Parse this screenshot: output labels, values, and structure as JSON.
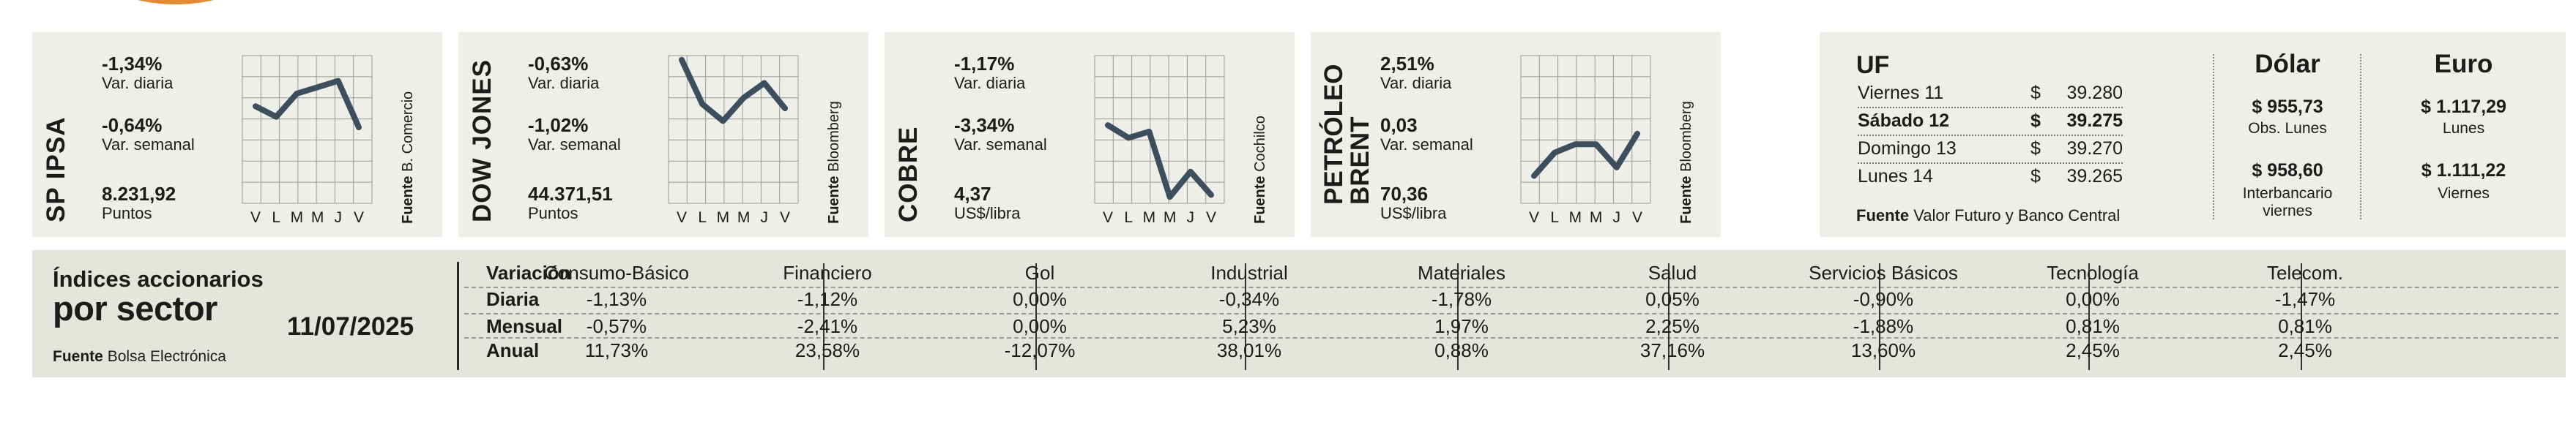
{
  "commodities": [
    {
      "title": [
        "SP IPSA"
      ],
      "daily": "-1,34%",
      "daily_label": "Var. diaria",
      "weekly": "-0,64%",
      "weekly_label": "Var. semanal",
      "value": "8.231,92",
      "value_label": "Puntos",
      "source_label": "Fuente",
      "source": "B. Comercio",
      "series": [
        4.6,
        4.1,
        5.2,
        5.5,
        5.8,
        3.6
      ]
    },
    {
      "title": [
        "DOW JONES"
      ],
      "daily": "-0,63%",
      "daily_label": "Var. diaria",
      "weekly": "-1,02%",
      "weekly_label": "Var. semanal",
      "value": "44.371,51",
      "value_label": "Puntos",
      "source_label": "Fuente",
      "source": "Bloomberg",
      "series": [
        6.8,
        4.7,
        3.9,
        5.0,
        5.7,
        4.5
      ]
    },
    {
      "title": [
        "COBRE"
      ],
      "daily": "-1,17%",
      "daily_label": "Var. diaria",
      "weekly": "-3,34%",
      "weekly_label": "Var. semanal",
      "value": "4,37",
      "value_label": "US$/libra",
      "source_label": "Fuente",
      "source": "Cochilco",
      "series": [
        3.7,
        3.1,
        3.4,
        0.3,
        1.5,
        0.4
      ]
    },
    {
      "title": [
        "PETRÓLEO",
        "BRENT"
      ],
      "daily": "2,51%",
      "daily_label": "Var. diaria",
      "weekly": "0,03",
      "weekly_label": "Var. semanal",
      "value": "70,36",
      "value_label": "US$/libra",
      "source_label": "Fuente",
      "source": "Bloomberg",
      "series": [
        1.3,
        2.4,
        2.8,
        2.8,
        1.7,
        3.3
      ]
    }
  ],
  "x_labels": [
    "V",
    "L",
    "M",
    "M",
    "J",
    "V"
  ],
  "uf": {
    "title": "UF",
    "rows": [
      {
        "day": "Viernes 11",
        "currency": "$",
        "amount": "39.280",
        "bold": false
      },
      {
        "day": "Sábado 12",
        "currency": "$",
        "amount": "39.275",
        "bold": true
      },
      {
        "day": "Domingo 13",
        "currency": "$",
        "amount": "39.270",
        "bold": false
      },
      {
        "day": "Lunes 14",
        "currency": "$",
        "amount": "39.265",
        "bold": false
      }
    ],
    "source_label": "Fuente",
    "source": "Valor Futuro y Banco Central"
  },
  "dolar": {
    "title": "Dólar",
    "v1": "$ 955,73",
    "l1": "Obs. Lunes",
    "v2": "$ 958,60",
    "l2a": "Interbancario",
    "l2b": "viernes"
  },
  "euro": {
    "title": "Euro",
    "v1": "$ 1.117,29",
    "l1": "Lunes",
    "v2": "$ 1.111,22",
    "l2": "Viernes"
  },
  "sectors": {
    "title1": "Índices accionarios",
    "title2": "por sector",
    "date": "11/07/2025",
    "source_label": "Fuente",
    "source": "Bolsa Electrónica",
    "row_labels": [
      "Variación",
      "Diaria",
      "Mensual",
      "Anual"
    ],
    "columns": [
      {
        "name": "Consumo-Básico",
        "diaria": "-1,13%",
        "mensual": "-0,57%",
        "anual": "11,73%"
      },
      {
        "name": "Financiero",
        "diaria": "-1,12%",
        "mensual": "-2,41%",
        "anual": "23,58%"
      },
      {
        "name": "Gol",
        "diaria": "0,00%",
        "mensual": "0,00%",
        "anual": "-12,07%"
      },
      {
        "name": "Industrial",
        "diaria": "-0,34%",
        "mensual": "5,23%",
        "anual": "38,01%"
      },
      {
        "name": "Materiales",
        "diaria": "-1,78%",
        "mensual": "1,97%",
        "anual": "0,88%"
      },
      {
        "name": "Salud",
        "diaria": "0,05%",
        "mensual": "2,25%",
        "anual": "37,16%"
      },
      {
        "name": "Servicios Básicos",
        "diaria": "-0,90%",
        "mensual": "-1,88%",
        "anual": "13,60%"
      },
      {
        "name": "Tecnología",
        "diaria": "0,00%",
        "mensual": "0,81%",
        "anual": "2,45%"
      },
      {
        "name": "Telecom.",
        "diaria": "-1,47%",
        "mensual": "0,81%",
        "anual": "2,45%"
      }
    ]
  },
  "colors": {
    "panel": "#efefe9",
    "line": "#3d4e5c",
    "accent": "#e58a34"
  }
}
